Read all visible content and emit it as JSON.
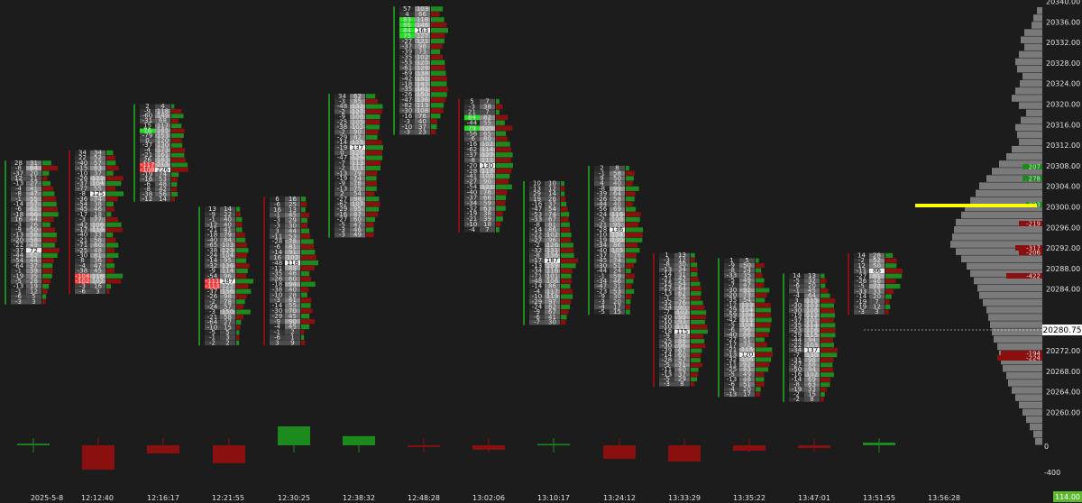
{
  "colors": {
    "background": "#1c1c1c",
    "axis_bg": "#1a1a1a",
    "positive": "#1c8a1c",
    "positive_bright": "#22e022",
    "negative": "#8a1010",
    "negative_bright": "#ff3b3b",
    "profile_gray": "#7a7a7a",
    "poc_line": "#ffff00",
    "text": "#e0e0e0",
    "current_price_bg": "#ffffff",
    "current_price_text": "#000000",
    "volume_badge": "#5cb82f"
  },
  "price_axis": {
    "labels": [
      "20340.00",
      "20336.00",
      "20332.00",
      "20328.00",
      "20324.00",
      "20320.00",
      "20316.00",
      "20312.00",
      "20308.00",
      "20304.00",
      "20300.00",
      "20296.00",
      "20292.00",
      "20288.00",
      "20284.00",
      "20280.75",
      "20276.00",
      "20272.00",
      "20268.00",
      "20264.00",
      "20260.00"
    ],
    "current_price": "20280.75",
    "range": [
      20258,
      20340
    ]
  },
  "volume_axis": {
    "labels": [
      "0",
      "-400"
    ],
    "badge": "114.00"
  },
  "time_axis": {
    "labels": [
      "2025-5-8",
      "12:12:40",
      "12:16:17",
      "12:21:55",
      "12:30:25",
      "12:38:32",
      "12:48:28",
      "13:02:06",
      "13:10:17",
      "13:24:12",
      "13:33:29",
      "13:35:22",
      "13:47:01",
      "13:51:55",
      "13:56:28"
    ]
  },
  "profile_labels": [
    "207",
    "278",
    "333",
    "-219",
    "-317",
    "-206",
    "-422",
    "-194",
    "-224"
  ],
  "chart_data": {
    "type": "footprint",
    "bars": [
      {
        "low": 20281,
        "high": 20309,
        "left": [
          "28",
          "-8",
          "-37",
          "12",
          "-13",
          "-4",
          "-8",
          "-1",
          "-14",
          "-6",
          "-18",
          "16",
          "-3",
          "-9",
          "-13",
          "-20",
          "-22",
          "-37",
          "-44",
          "-54",
          "-64",
          "-1",
          "-19",
          "-5",
          "-13",
          "-1",
          "-6",
          "-3"
        ],
        "right": [
          "31",
          "64",
          "20",
          "11",
          "27",
          "41",
          "47",
          "55",
          "57",
          "62",
          "66",
          "44",
          "26",
          "50",
          "58",
          "58",
          "49",
          "72",
          "62",
          "44",
          "37",
          "39",
          "35",
          "28",
          "19",
          "12",
          "5",
          "3"
        ]
      },
      {
        "low": 20283,
        "high": 20311,
        "left": [
          "34",
          "22",
          "-40",
          "-15",
          "-10",
          "-26",
          "-37",
          "-77",
          "-8",
          "-36",
          "-54",
          "-45",
          "-17",
          "-3",
          "-42",
          "-17",
          "-40",
          "-21",
          "-71",
          "-25",
          "-30",
          "8",
          "-4",
          "-38",
          "-104",
          "-102",
          "-3",
          "-6"
        ],
        "right": [
          "34",
          "52",
          "57",
          "83",
          "37",
          "122",
          "104",
          "55",
          "125",
          "74",
          "38",
          "46",
          "18",
          "77",
          "106",
          "116",
          "33",
          "58",
          "80",
          "48",
          "81",
          "36",
          "47",
          "45",
          "118",
          "102",
          "16",
          "3"
        ]
      },
      {
        "low": 20301,
        "high": 20320,
        "left": [
          "2",
          "-9",
          "-60",
          "-31",
          "15",
          "76",
          "-79",
          "0",
          "-37",
          "-4",
          "-21",
          "26",
          "-117",
          "-108",
          "-19",
          "-16",
          "-6",
          "-8",
          "-38",
          "-12"
        ],
        "right": [
          "4",
          "118",
          "149",
          "68",
          "117",
          "165",
          "153",
          "120",
          "130",
          "173",
          "161",
          "183",
          "213",
          "226",
          "74",
          "53",
          "48",
          "42",
          "56",
          "14"
        ]
      },
      {
        "low": 20273,
        "high": 20300,
        "left": [
          "13",
          "-9",
          "-1",
          "-12",
          "-21",
          "-18",
          "-40",
          "-65",
          "-38",
          "-24",
          "-14",
          "-32",
          "-9",
          "-54",
          "-111",
          "-113",
          "-37",
          "-26",
          "-2",
          "-24",
          "-3",
          "-21",
          "-64",
          "-10",
          "-5",
          "-1",
          "-2"
        ],
        "right": [
          "14",
          "22",
          "40",
          "40",
          "41",
          "79",
          "84",
          "103",
          "123",
          "104",
          "95",
          "136",
          "114",
          "96",
          "187",
          "122",
          "156",
          "98",
          "78",
          "57",
          "150",
          "58",
          "27",
          "15",
          "5",
          "3",
          "2"
        ]
      },
      {
        "low": 20273,
        "high": 20302,
        "left": [
          "6",
          "-6",
          "16",
          "-1",
          "-3",
          "-3",
          "3",
          "-11",
          "-28",
          "-6",
          "-14",
          "16",
          "-48",
          "-11",
          "-35",
          "-26",
          "-18",
          "-38",
          "-10",
          "-3",
          "-14",
          "-30",
          "-29",
          "-9",
          "-4",
          "-1",
          "-6",
          "3"
        ],
        "right": [
          "16",
          "25",
          "13",
          "45",
          "29",
          "30",
          "44",
          "53",
          "78",
          "81",
          "91",
          "102",
          "118",
          "88",
          "46",
          "60",
          "94",
          "40",
          "28",
          "61",
          "55",
          "70",
          "45",
          "90",
          "45",
          "2",
          "1",
          "9"
        ]
      },
      {
        "low": 20294,
        "high": 20322,
        "left": [
          "34",
          "-3",
          "-48",
          "-2",
          "-9",
          "-25",
          "-38",
          "-2",
          "-29",
          "-14",
          "-19",
          "0",
          "-47",
          "-7",
          "-2",
          "-13",
          "-19",
          "-9",
          "-13",
          "2",
          "-27",
          "-62",
          "-29",
          "-16",
          "-27",
          "-5",
          "-3",
          "-3"
        ],
        "right": [
          "62",
          "85",
          "132",
          "127",
          "108",
          "105",
          "102",
          "90",
          "82",
          "125",
          "137",
          "128",
          "129",
          "113",
          "111",
          "79",
          "74",
          "76",
          "75",
          "54",
          "98",
          "107",
          "95",
          "87",
          "60",
          "47",
          "46",
          "49"
        ]
      },
      {
        "low": 20314,
        "high": 20339,
        "left": [
          "57",
          "4",
          "83",
          "86",
          "84",
          "75",
          "-27",
          "-37",
          "-39",
          "-35",
          "-53",
          "-61",
          "-69",
          "-42",
          "-18",
          "-35",
          "-26",
          "-47",
          "-82",
          "-30",
          "-16",
          "-3",
          "-10",
          "-3"
        ],
        "right": [
          "103",
          "66",
          "118",
          "146",
          "163",
          "127",
          "121",
          "98",
          "73",
          "102",
          "125",
          "129",
          "138",
          "151",
          "147",
          "161",
          "150",
          "136",
          "113",
          "108",
          "76",
          "40",
          "37",
          "23"
        ]
      },
      {
        "low": 20295,
        "high": 20321,
        "left": [
          "5",
          "-3",
          "21",
          "84",
          "-44",
          "79",
          "-56",
          "-6",
          "-16",
          "-62",
          "-37",
          "-8",
          "-20",
          "-28",
          "-41",
          "-27",
          "-54",
          "-40",
          "-37",
          "-34",
          "-32",
          "-19",
          "-21",
          "-10",
          "-4"
        ],
        "right": [
          "7",
          "38",
          "7",
          "82",
          "55",
          "125",
          "65",
          "80",
          "102",
          "114",
          "127",
          "111",
          "130",
          "117",
          "100",
          "90",
          "121",
          "76",
          "66",
          "59",
          "63",
          "38",
          "39",
          "18",
          "7"
        ]
      },
      {
        "low": 20277,
        "high": 20305,
        "left": [
          "10",
          "13",
          "29",
          "19",
          "-16",
          "-47",
          "-53",
          "-33",
          "-8",
          "-14",
          "-22",
          "-27",
          "-2",
          "-32",
          "-8",
          "-17",
          "-13",
          "-34",
          "-71",
          "-48",
          "-14",
          "-4",
          "-10",
          "-29",
          "-24",
          "-9",
          "-6",
          "-7"
        ],
        "right": [
          "10",
          "12",
          "14",
          "26",
          "37",
          "54",
          "74",
          "67",
          "81",
          "86",
          "102",
          "96",
          "126",
          "131",
          "136",
          "187",
          "159",
          "116",
          "101",
          "106",
          "86",
          "117",
          "119",
          "97",
          "82",
          "67",
          "41",
          "30"
        ]
      },
      {
        "low": 20279,
        "high": 20308,
        "left": [
          "2",
          "-1",
          "9",
          "4",
          "-8",
          "-39",
          "-26",
          "-44",
          "-56",
          "-24",
          "-2",
          "-21",
          "-28",
          "-10",
          "-19",
          "-34",
          "-40",
          "-37",
          "-45",
          "-30",
          "-44",
          "-1",
          "-34",
          "-47",
          "-23",
          "-9",
          "-3",
          "-4",
          "-5"
        ],
        "right": [
          "8",
          "58",
          "50",
          "40",
          "99",
          "64",
          "58",
          "40",
          "69",
          "116",
          "108",
          "95",
          "136",
          "134",
          "130",
          "86",
          "105",
          "76",
          "74",
          "51",
          "24",
          "59",
          "46",
          "31",
          "53",
          "30",
          "20",
          "17",
          "15"
        ]
      },
      {
        "low": 20265,
        "high": 20291,
        "left": [
          "1",
          "-3",
          "-8",
          "-13",
          "-14",
          "-21",
          "-15",
          "-17",
          "-13",
          "-1",
          "-32",
          "-24",
          "-7",
          "-20",
          "-10",
          "-10",
          "-18",
          "-9",
          "-25",
          "-30",
          "-39",
          "-14",
          "-28",
          "-5",
          "-11",
          "-13",
          "-5",
          "-3"
        ],
        "right": [
          "13",
          "12",
          "30",
          "34",
          "31",
          "42",
          "54",
          "64",
          "62",
          "58",
          "76",
          "90",
          "102",
          "99",
          "93",
          "111",
          "115",
          "79",
          "88",
          "96",
          "67",
          "60",
          "57",
          "71",
          "40",
          "37",
          "29",
          "8"
        ]
      },
      {
        "low": 20263,
        "high": 20290,
        "left": [
          "1",
          "-9",
          "-8",
          "-33",
          "-5",
          "-7",
          "-30",
          "-20",
          "-35",
          "-12",
          "-29",
          "-59",
          "-42",
          "-5",
          "-6",
          "-40",
          "-27",
          "-17",
          "-21",
          "-13",
          "-32",
          "-11",
          "-25",
          "-5",
          "-13",
          "-6",
          "-4",
          "-13"
        ],
        "right": [
          "5",
          "50",
          "24",
          "35",
          "49",
          "47",
          "92",
          "73",
          "54",
          "103",
          "104",
          "104",
          "111",
          "104",
          "96",
          "86",
          "51",
          "72",
          "115",
          "120",
          "106",
          "92",
          "83",
          "49",
          "48",
          "51",
          "20",
          "17"
        ]
      },
      {
        "low": 20262,
        "high": 20287,
        "left": [
          "14",
          "-5",
          "-6",
          "-1",
          "-4",
          "3",
          "-30",
          "-30",
          "-19",
          "-37",
          "-35",
          "-23",
          "-29",
          "-44",
          "-22",
          "-34",
          "-7",
          "-31",
          "-27",
          "-50",
          "-16",
          "-14",
          "-8",
          "-19",
          "-2",
          "-2"
        ],
        "right": [
          "13",
          "32",
          "20",
          "45",
          "64",
          "115",
          "103",
          "108",
          "112",
          "101",
          "114",
          "116",
          "115",
          "94",
          "103",
          "137",
          "130",
          "98",
          "88",
          "94",
          "102",
          "69",
          "63",
          "33",
          "15",
          "8"
        ]
      },
      {
        "low": 20279,
        "high": 20291,
        "left": [
          "14",
          "-2",
          "12",
          "-11",
          "-27",
          "-26",
          "-5",
          "-33",
          "-14",
          "-19",
          "-19",
          "-3"
        ],
        "right": [
          "28",
          "52",
          "50",
          "86",
          "81",
          "46",
          "72",
          "33",
          "20",
          "7",
          "12",
          "3"
        ]
      }
    ]
  }
}
